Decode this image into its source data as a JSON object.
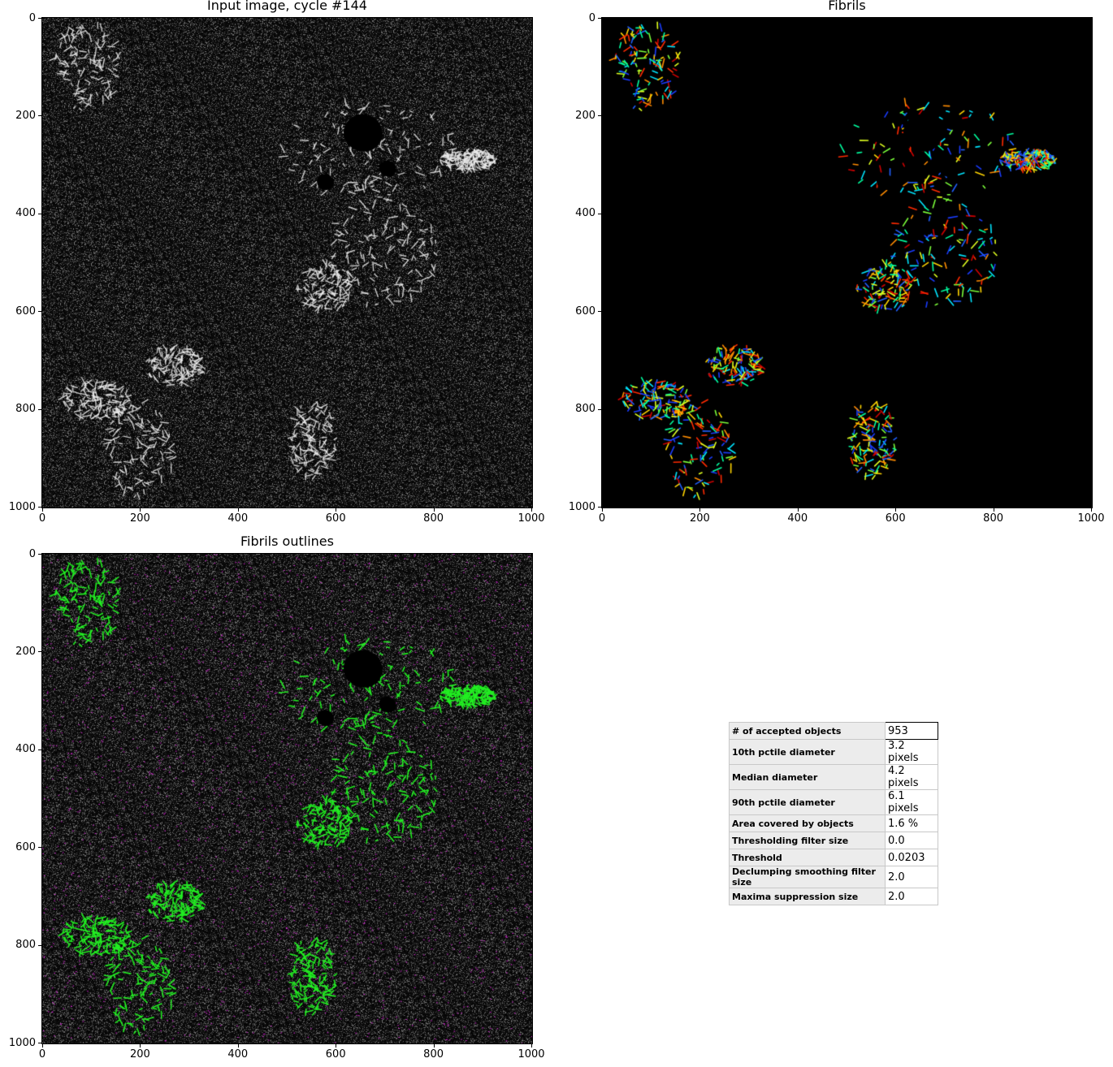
{
  "panels": [
    {
      "id": "input",
      "title": "Input image, cycle #144",
      "x_ticks": [
        "0",
        "200",
        "400",
        "600",
        "800",
        "1000"
      ],
      "y_ticks": [
        "0",
        "200",
        "400",
        "600",
        "800",
        "1000"
      ]
    },
    {
      "id": "fibrils",
      "title": "Fibrils",
      "x_ticks": [
        "0",
        "200",
        "400",
        "600",
        "800",
        "1000"
      ],
      "y_ticks": [
        "0",
        "200",
        "400",
        "600",
        "800",
        "1000"
      ]
    },
    {
      "id": "outlines",
      "title": "Fibrils outlines",
      "x_ticks": [
        "0",
        "200",
        "400",
        "600",
        "800",
        "1000"
      ],
      "y_ticks": [
        "0",
        "200",
        "400",
        "600",
        "800",
        "1000"
      ]
    }
  ],
  "stats": [
    {
      "label": "# of accepted objects",
      "value": "953"
    },
    {
      "label": "10th pctile diameter",
      "value": "3.2 pixels"
    },
    {
      "label": "Median diameter",
      "value": "4.2 pixels"
    },
    {
      "label": "90th pctile diameter",
      "value": "6.1 pixels"
    },
    {
      "label": "Area covered by objects",
      "value": "1.6 %"
    },
    {
      "label": "Thresholding filter size",
      "value": "0.0"
    },
    {
      "label": "Threshold",
      "value": "0.0203"
    },
    {
      "label": "Declumping smoothing filter size",
      "value": "2.0"
    },
    {
      "label": "Maxima suppression size",
      "value": "2.0"
    }
  ],
  "colors": {
    "outline_green": "#22ee22",
    "outline_magenta": "#dd22dd",
    "background": "#000000"
  }
}
